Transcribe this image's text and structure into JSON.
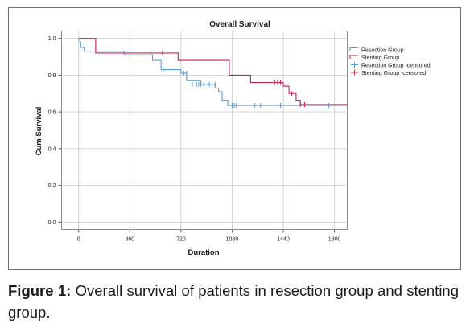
{
  "chart_data": {
    "type": "line",
    "subtype": "kaplan-meier",
    "title": "Overall Survival",
    "xlabel": "Duration",
    "ylabel": "Cum Survival",
    "xlim": [
      -120,
      1890
    ],
    "ylim": [
      -0.04,
      1.04
    ],
    "x_ticks": [
      0,
      360,
      720,
      1080,
      1440,
      1800
    ],
    "x_tick_labels": [
      "0",
      "360",
      "720",
      "1080",
      "1440",
      "1800"
    ],
    "y_ticks": [
      0,
      0.2,
      0.4,
      0.6,
      0.8,
      1.0
    ],
    "y_tick_labels": [
      "0.0",
      "0.2",
      "0.4",
      "0.6",
      "0.8",
      "1.0"
    ],
    "grid": true,
    "legend_position": "right",
    "legend": [
      {
        "label": "Resection Group",
        "kind": "step",
        "color": "#5b9bd5"
      },
      {
        "label": "Stenting Group",
        "kind": "step",
        "color": "#c8244e"
      },
      {
        "label": "Resection Group -censored",
        "kind": "censor",
        "color": "#5b9bd5"
      },
      {
        "label": "Stenting Group -censored",
        "kind": "censor",
        "color": "#c8244e"
      }
    ],
    "series": [
      {
        "name": "Resection Group",
        "color": "#5b9bd5",
        "x": [
          0,
          8,
          15,
          40,
          320,
          520,
          580,
          720,
          760,
          860,
          960,
          985,
          1010,
          1050,
          1900
        ],
        "y": [
          1.0,
          0.98,
          0.95,
          0.93,
          0.91,
          0.88,
          0.83,
          0.81,
          0.77,
          0.75,
          0.73,
          0.71,
          0.66,
          0.635,
          0.635
        ],
        "censored_x": [
          595,
          740,
          760,
          800,
          830,
          845,
          860,
          880,
          920,
          960,
          1080,
          1095,
          1110,
          1240,
          1280,
          1420,
          1760
        ],
        "censored_y": [
          0.83,
          0.81,
          0.81,
          0.75,
          0.75,
          0.75,
          0.75,
          0.75,
          0.75,
          0.75,
          0.635,
          0.635,
          0.635,
          0.635,
          0.635,
          0.635,
          0.635
        ]
      },
      {
        "name": "Stenting Group",
        "color": "#c8244e",
        "x": [
          0,
          120,
          700,
          1060,
          1210,
          1440,
          1480,
          1530,
          1560,
          1900
        ],
        "y": [
          1.0,
          0.92,
          0.88,
          0.8,
          0.76,
          0.74,
          0.7,
          0.66,
          0.64,
          0.64
        ],
        "censored_x": [
          120,
          590,
          1380,
          1400,
          1420,
          1500,
          1560,
          1590
        ],
        "censored_y": [
          0.95,
          0.92,
          0.76,
          0.76,
          0.76,
          0.7,
          0.64,
          0.64
        ]
      }
    ]
  },
  "caption": {
    "label": "Figure 1:",
    "text": "Overall survival of patients in resection group and stenting group."
  }
}
